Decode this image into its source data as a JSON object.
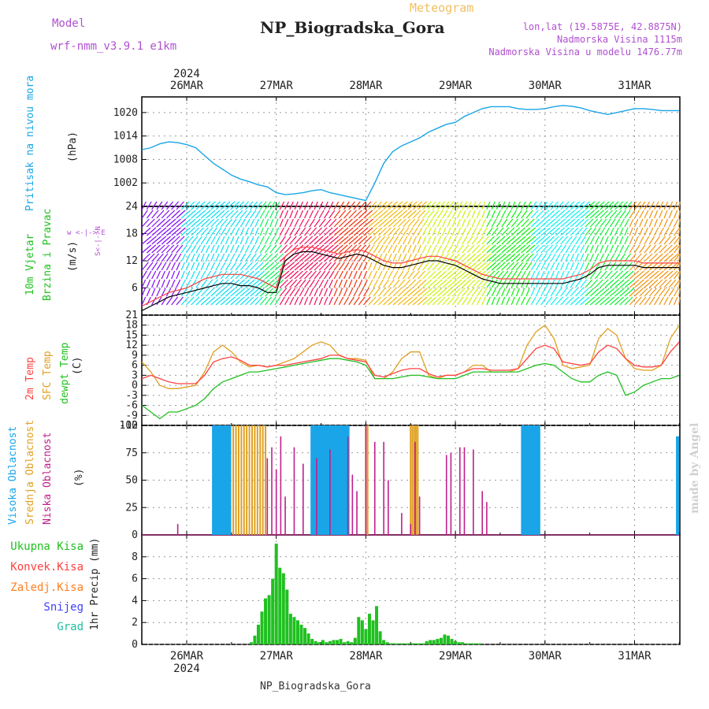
{
  "header": {
    "model_label": "Model",
    "model_name": "wrf-nmm_v3.9.1 e1km",
    "title": "NP_Biogradska_Gora",
    "meteogram": "Meteogram",
    "lonlat": "lon,lat (19.5875E, 42.8875N)",
    "elevation": "Nadmorska Visina 1115m",
    "model_elevation": "Nadmorska Visina u modelu 1476.77m",
    "bottom_station": "NP_Biogradska_Gora",
    "watermark": "made by Angel"
  },
  "colors": {
    "pressure": "#1aa5e8",
    "wind_speed": "#000000",
    "wind_gust": "#ff4040",
    "t2m": "#ff4040",
    "sfc": "#e0a020",
    "dewpt": "#20c020",
    "high": "#1aa5e8",
    "mid": "#e0a020",
    "low": "#c0208a",
    "total_precip": "#20c020",
    "purple_text": "#b050d0"
  },
  "chart_data": [
    {
      "type": "line",
      "title": "",
      "ylabel": "Pritisak na nivou mora",
      "units": "(hPa)",
      "ylim": [
        996,
        1024
      ],
      "yticks": [
        1002,
        1008,
        1014,
        1020
      ],
      "x_day": [
        -0.5,
        -0.4,
        -0.3,
        -0.2,
        -0.1,
        0.0,
        0.1,
        0.2,
        0.3,
        0.4,
        0.5,
        0.6,
        0.7,
        0.8,
        0.9,
        1.0,
        1.1,
        1.2,
        1.3,
        1.4,
        1.5,
        1.6,
        1.7,
        1.8,
        1.9,
        2.0,
        2.1,
        2.2,
        2.3,
        2.4,
        2.5,
        2.6,
        2.7,
        2.8,
        2.9,
        3.0,
        3.1,
        3.2,
        3.3,
        3.4,
        3.5,
        3.6,
        3.7,
        3.8,
        3.9,
        4.0,
        4.1,
        4.2,
        4.3,
        4.4,
        4.5,
        4.6,
        4.7,
        4.8,
        4.9,
        5.0,
        5.1,
        5.2,
        5.3,
        5.4,
        5.5
      ],
      "values": [
        1010.5,
        1011,
        1012,
        1012.5,
        1012.3,
        1011.8,
        1011,
        1009,
        1007,
        1005.5,
        1004,
        1003,
        1002.3,
        1001.5,
        1001,
        999.5,
        999,
        999.2,
        999.5,
        1000,
        1000.3,
        999.5,
        999,
        998.5,
        998,
        997.5,
        1002,
        1007,
        1010,
        1011.5,
        1012.5,
        1013.5,
        1015,
        1016,
        1017,
        1017.5,
        1019,
        1020,
        1021,
        1021.5,
        1021.5,
        1021.5,
        1021,
        1020.8,
        1020.8,
        1021,
        1021.5,
        1021.8,
        1021.6,
        1021.2,
        1020.5,
        1020,
        1019.5,
        1020,
        1020.5,
        1021,
        1021,
        1020.8,
        1020.5,
        1020.5,
        1020.5
      ]
    },
    {
      "type": "line",
      "title": "",
      "ylabel": "10m Vjetar Brzina i Pravac",
      "units": "(m/s)",
      "ylim": [
        0,
        24
      ],
      "yticks": [
        6,
        12,
        18,
        24
      ],
      "x_day": [
        -0.5,
        -0.4,
        -0.3,
        -0.2,
        -0.1,
        0.0,
        0.1,
        0.2,
        0.3,
        0.4,
        0.5,
        0.6,
        0.7,
        0.8,
        0.9,
        1.0,
        1.1,
        1.2,
        1.3,
        1.4,
        1.5,
        1.6,
        1.7,
        1.8,
        1.9,
        2.0,
        2.1,
        2.2,
        2.3,
        2.4,
        2.5,
        2.6,
        2.7,
        2.8,
        2.9,
        3.0,
        3.1,
        3.2,
        3.3,
        3.4,
        3.5,
        3.6,
        3.7,
        3.8,
        3.9,
        4.0,
        4.1,
        4.2,
        4.3,
        4.4,
        4.5,
        4.6,
        4.7,
        4.8,
        4.9,
        5.0,
        5.1,
        5.2,
        5.3,
        5.4,
        5.5
      ],
      "series": [
        {
          "name": "speed",
          "values": [
            1,
            2,
            3,
            4,
            4.5,
            5,
            5.5,
            6,
            6.5,
            7,
            7,
            6.5,
            6.5,
            6,
            5,
            5,
            12,
            13.5,
            14,
            14,
            13.5,
            13,
            12.5,
            13,
            13.5,
            13,
            12,
            11,
            10.5,
            10.5,
            11,
            11.5,
            12,
            12,
            11.5,
            11,
            10,
            9,
            8,
            7.5,
            7,
            7,
            7,
            7,
            7,
            7,
            7,
            7,
            7.5,
            8,
            9,
            10.5,
            11,
            11,
            11,
            11,
            10.5,
            10.5,
            10.5,
            10.5,
            10.5
          ]
        },
        {
          "name": "gust",
          "values": [
            2,
            3,
            4,
            5,
            5.5,
            6,
            7,
            8,
            8.5,
            9,
            9,
            9,
            8.5,
            8,
            7,
            6,
            13,
            14.5,
            15,
            15,
            14.5,
            14,
            13.5,
            14,
            14.5,
            14,
            13,
            12,
            11.5,
            11.5,
            12,
            12.5,
            13,
            13,
            12.5,
            12,
            11,
            10,
            9,
            8.5,
            8,
            8,
            8,
            8,
            8,
            8,
            8,
            8,
            8.5,
            9,
            10,
            11.5,
            12,
            12,
            12,
            12,
            11.5,
            11.5,
            11.5,
            11.5,
            11.5
          ]
        }
      ],
      "side_label": "w <-|-> E"
    },
    {
      "type": "line",
      "title": "",
      "ylabel": "2m Temp / SFC Temp / dewpt Temp",
      "units": "(C)",
      "ylim": [
        -12,
        21
      ],
      "yticks": [
        -12,
        -9,
        -6,
        -3,
        0,
        3,
        6,
        9,
        12,
        15,
        18,
        21
      ],
      "x_day": [
        -0.5,
        -0.4,
        -0.3,
        -0.2,
        -0.1,
        0.0,
        0.1,
        0.2,
        0.3,
        0.4,
        0.5,
        0.6,
        0.7,
        0.8,
        0.9,
        1.0,
        1.1,
        1.2,
        1.3,
        1.4,
        1.5,
        1.6,
        1.7,
        1.8,
        1.9,
        2.0,
        2.1,
        2.2,
        2.3,
        2.4,
        2.5,
        2.6,
        2.7,
        2.8,
        2.9,
        3.0,
        3.1,
        3.2,
        3.3,
        3.4,
        3.5,
        3.6,
        3.7,
        3.8,
        3.9,
        4.0,
        4.1,
        4.2,
        4.3,
        4.4,
        4.5,
        4.6,
        4.7,
        4.8,
        4.9,
        5.0,
        5.1,
        5.2,
        5.3,
        5.4,
        5.5
      ],
      "series": [
        {
          "name": "2m Temp",
          "values": [
            2,
            3,
            2,
            1,
            0.5,
            0.5,
            0.5,
            3,
            7,
            8,
            8.5,
            7.5,
            6,
            6,
            5.5,
            6,
            6,
            6.5,
            7,
            7.5,
            8,
            9,
            9,
            8,
            7.5,
            7,
            3,
            2.5,
            3.5,
            4.5,
            5,
            5,
            3.5,
            2.5,
            3,
            3,
            4,
            5,
            5,
            4.5,
            4.5,
            4.5,
            5,
            8,
            11,
            12,
            11,
            7,
            6.5,
            6,
            6.5,
            10,
            12,
            11,
            8,
            6,
            5.5,
            5.5,
            6,
            10,
            13
          ]
        },
        {
          "name": "SFC Temp",
          "values": [
            7,
            4,
            0,
            -1,
            -1,
            -0.5,
            0,
            4,
            10,
            12,
            10,
            7,
            5.5,
            6,
            5.5,
            6,
            7,
            8,
            10,
            12,
            13,
            12,
            9,
            8,
            8,
            7.5,
            2,
            2,
            4,
            8,
            10,
            10,
            3,
            2,
            3,
            3,
            4,
            6,
            6,
            4,
            4,
            4,
            5,
            12,
            16,
            18,
            14,
            6,
            5,
            5.5,
            6,
            14,
            17,
            15,
            8,
            5,
            4.5,
            4.5,
            6,
            14,
            18
          ]
        },
        {
          "name": "dewpt Temp",
          "values": [
            -6,
            -8,
            -10,
            -8,
            -8,
            -7,
            -6,
            -4,
            -1,
            1,
            2,
            3,
            4,
            4,
            4.5,
            5,
            5.5,
            6,
            6.5,
            7,
            7.5,
            8,
            8,
            7.5,
            7,
            6,
            2,
            2,
            2,
            2.5,
            3,
            3,
            2.5,
            2,
            2,
            2,
            3,
            4,
            4,
            4,
            4,
            4,
            4,
            5,
            6,
            6.5,
            6,
            4,
            2,
            1,
            1,
            3,
            4,
            3,
            -3,
            -2,
            0,
            1,
            2,
            2,
            3
          ]
        }
      ]
    },
    {
      "type": "bar",
      "title": "",
      "ylabel": "Visoka Oblacnost / Srednja Oblacnost / Niska Oblacnost",
      "units": "(%)",
      "ylim": [
        0,
        100
      ],
      "yticks": [
        0,
        25,
        50,
        75,
        100
      ],
      "series": [
        {
          "name": "Visoka Oblacnost",
          "x_day": [
            0.3,
            0.32,
            0.34,
            0.36,
            0.38,
            0.4,
            0.42,
            0.44,
            0.46,
            0.48,
            1.4,
            1.42,
            1.44,
            1.46,
            1.48,
            1.5,
            1.52,
            1.54,
            1.56,
            1.58,
            1.6,
            1.62,
            1.64,
            1.66,
            1.68,
            1.7,
            1.72,
            1.74,
            1.76,
            1.78,
            1.8,
            3.75,
            3.77,
            3.79,
            3.81,
            3.83,
            3.85,
            3.87,
            3.89,
            3.91,
            3.93,
            5.48
          ],
          "values": [
            100,
            100,
            100,
            100,
            100,
            100,
            100,
            100,
            100,
            100,
            100,
            100,
            100,
            100,
            100,
            100,
            100,
            100,
            100,
            100,
            100,
            100,
            100,
            100,
            100,
            100,
            100,
            100,
            100,
            100,
            100,
            100,
            100,
            100,
            100,
            100,
            100,
            100,
            100,
            100,
            100,
            90
          ]
        },
        {
          "name": "Srednja Oblacnost",
          "x_day": [
            0.52,
            0.55,
            0.58,
            0.61,
            0.64,
            0.67,
            0.7,
            0.73,
            0.76,
            0.79,
            0.82,
            0.85,
            0.88,
            2.0,
            2.02,
            2.5,
            2.52,
            2.54,
            2.56,
            2.58
          ],
          "values": [
            100,
            100,
            100,
            100,
            100,
            100,
            100,
            100,
            100,
            100,
            100,
            100,
            100,
            100,
            100,
            100,
            100,
            100,
            100,
            100
          ]
        },
        {
          "name": "Niska Oblacnost",
          "x_day": [
            -0.1,
            0.9,
            0.95,
            1.0,
            1.05,
            1.1,
            1.2,
            1.3,
            1.45,
            1.6,
            1.8,
            1.85,
            1.9,
            2.0,
            2.1,
            2.2,
            2.25,
            2.4,
            2.5,
            2.55,
            2.6,
            2.9,
            2.95,
            3.05,
            3.1,
            3.2,
            3.3,
            3.35
          ],
          "values": [
            10,
            70,
            80,
            60,
            90,
            35,
            80,
            65,
            70,
            78,
            90,
            55,
            40,
            100,
            85,
            85,
            50,
            20,
            10,
            85,
            35,
            73,
            75,
            80,
            80,
            78,
            40,
            30
          ]
        }
      ]
    },
    {
      "type": "bar",
      "title": "",
      "ylabel": "1hr Precip",
      "units": "(mm)",
      "ylim": [
        0,
        10
      ],
      "yticks": [
        0,
        2,
        4,
        6,
        8
      ],
      "legend": [
        "Ukupna Kisa",
        "Konvek.Kisa",
        "Zaledj.Kisa",
        "Snijeg",
        "Grad"
      ],
      "x_day": [
        0.72,
        0.76,
        0.8,
        0.84,
        0.88,
        0.92,
        0.96,
        1.0,
        1.04,
        1.08,
        1.12,
        1.16,
        1.2,
        1.24,
        1.28,
        1.32,
        1.36,
        1.4,
        1.44,
        1.48,
        1.52,
        1.56,
        1.6,
        1.64,
        1.68,
        1.72,
        1.76,
        1.8,
        1.84,
        1.88,
        1.92,
        1.96,
        2.0,
        2.04,
        2.08,
        2.12,
        2.16,
        2.2,
        2.24,
        2.28,
        2.32,
        2.36,
        2.4,
        2.44,
        2.48,
        2.52,
        2.56,
        2.6,
        2.64,
        2.68,
        2.72,
        2.76,
        2.8,
        2.84,
        2.88,
        2.92,
        2.96,
        3.0,
        3.04,
        3.08,
        3.12,
        3.16,
        3.2,
        3.24,
        3.28
      ],
      "values": [
        0.2,
        0.8,
        1.8,
        3,
        4.2,
        4.5,
        6,
        9.2,
        7,
        6.5,
        5,
        2.8,
        2.5,
        2.2,
        1.8,
        1.5,
        1,
        0.5,
        0.3,
        0.2,
        0.4,
        0.2,
        0.3,
        0.4,
        0.4,
        0.5,
        0.2,
        0.3,
        0.2,
        0.6,
        2.5,
        2.2,
        1.4,
        2.8,
        2.2,
        3.5,
        1.2,
        0.4,
        0.2,
        0.1,
        0.1,
        0.1,
        0.1,
        0.1,
        0.1,
        0.1,
        0.1,
        0.1,
        0.1,
        0.3,
        0.4,
        0.4,
        0.5,
        0.6,
        0.9,
        0.8,
        0.5,
        0.3,
        0.2,
        0.2,
        0.1,
        0.1,
        0.1,
        0.1,
        0.1
      ]
    }
  ],
  "axis": {
    "year": "2024",
    "day_labels": [
      "26MAR",
      "27MAR",
      "28MAR",
      "29MAR",
      "30MAR",
      "31MAR"
    ],
    "panel_labels": {
      "p1": [
        "Pritisak na nivou mora"
      ],
      "p2a": [
        "10m Vjetar"
      ],
      "p2b": [
        "Brzina i Pravac"
      ],
      "p3": [
        "2m Temp",
        "SFC Temp",
        "dewpt Temp"
      ],
      "p4": [
        "Visoka Oblacnost",
        "Srednja Oblacnost",
        "Niska Oblacnost"
      ],
      "p5": [
        "Ukupna Kisa",
        "Konvek.Kisa",
        "Zaledj.Kisa",
        "Snijeg",
        "Grad"
      ]
    },
    "units": {
      "p1": "(hPa)",
      "p2": "(m/s)",
      "p3": "(C)",
      "p4": "(%)",
      "p5": "1hr Precip (mm)"
    },
    "wind_compass": "w <-|-> E",
    "wind_compass_v": "S<-|->N"
  }
}
